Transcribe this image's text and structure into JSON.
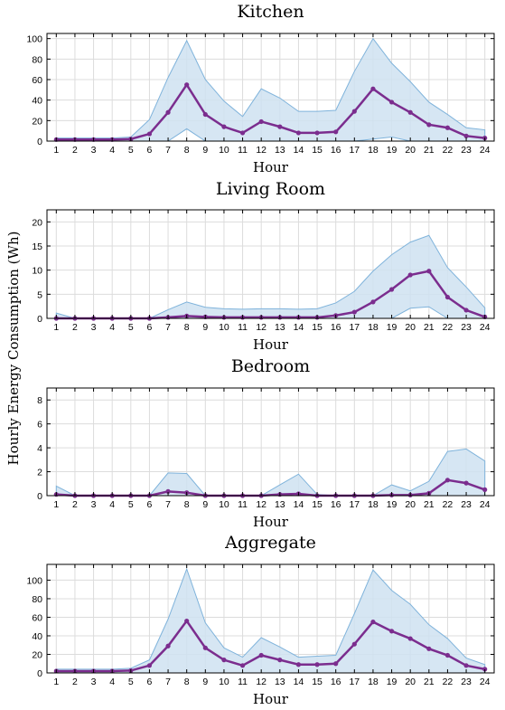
{
  "figure": {
    "ylabel": "Hourly Energy Consumption (Wh)",
    "colors": {
      "band_fill": "#cfe2f1",
      "band_edge": "#7fb3db",
      "mean_line": "#7b2d8e"
    }
  },
  "chart_data": [
    {
      "type": "area",
      "title": "Kitchen",
      "xlabel": "Hour",
      "x": [
        1,
        2,
        3,
        4,
        5,
        6,
        7,
        8,
        9,
        10,
        11,
        12,
        13,
        14,
        15,
        16,
        17,
        18,
        19,
        20,
        21,
        22,
        23,
        24
      ],
      "xlim": [
        0.5,
        24.5
      ],
      "ylim": [
        0,
        105
      ],
      "yticks": [
        0,
        20,
        40,
        60,
        80,
        100
      ],
      "grid": true,
      "series": [
        {
          "role": "upper",
          "values": [
            3,
            3,
            3,
            3,
            4,
            21,
            62,
            98,
            60,
            39,
            24,
            51,
            42,
            29,
            29,
            30,
            68,
            100,
            76,
            58,
            38,
            26,
            13,
            11
          ]
        },
        {
          "role": "lower",
          "values": [
            0,
            0,
            0,
            0,
            0,
            0,
            0,
            12,
            0,
            0,
            0,
            0,
            0,
            0,
            0,
            0,
            0,
            2,
            4,
            0,
            0,
            0,
            0,
            0
          ]
        },
        {
          "role": "mean",
          "values": [
            1.5,
            1.5,
            1.5,
            1.5,
            2,
            7,
            28,
            55,
            26,
            14,
            8,
            19,
            14,
            8,
            8,
            9,
            29,
            51,
            38,
            28,
            16,
            13,
            5,
            3
          ]
        }
      ]
    },
    {
      "type": "area",
      "title": "Living Room",
      "xlabel": "Hour",
      "x": [
        1,
        2,
        3,
        4,
        5,
        6,
        7,
        8,
        9,
        10,
        11,
        12,
        13,
        14,
        15,
        16,
        17,
        18,
        19,
        20,
        21,
        22,
        23,
        24
      ],
      "xlim": [
        0.5,
        24.5
      ],
      "ylim": [
        0,
        22.5
      ],
      "yticks": [
        0,
        5,
        10,
        15,
        20
      ],
      "grid": true,
      "series": [
        {
          "role": "upper",
          "values": [
            1.1,
            0,
            0,
            0,
            0,
            0,
            1.8,
            3.4,
            2.3,
            2.0,
            1.9,
            2.0,
            2.0,
            1.9,
            2.0,
            3.2,
            5.6,
            9.8,
            13.2,
            15.8,
            17.2,
            10.5,
            6.5,
            2.2
          ]
        },
        {
          "role": "lower",
          "values": [
            0,
            0,
            0,
            0,
            0,
            0,
            0,
            0,
            0,
            0,
            0,
            0,
            0,
            0,
            0,
            0,
            0,
            0,
            0,
            2.1,
            2.4,
            0,
            0,
            0
          ]
        },
        {
          "role": "mean",
          "values": [
            0,
            0,
            0,
            0,
            0,
            0,
            0.2,
            0.5,
            0.3,
            0.2,
            0.2,
            0.2,
            0.2,
            0.2,
            0.2,
            0.6,
            1.3,
            3.4,
            6.0,
            9.0,
            9.8,
            4.4,
            1.7,
            0.3
          ]
        }
      ]
    },
    {
      "type": "area",
      "title": "Bedroom",
      "xlabel": "Hour",
      "x": [
        1,
        2,
        3,
        4,
        5,
        6,
        7,
        8,
        9,
        10,
        11,
        12,
        13,
        14,
        15,
        16,
        17,
        18,
        19,
        20,
        21,
        22,
        23,
        24
      ],
      "xlim": [
        0.5,
        24.5
      ],
      "ylim": [
        0,
        9
      ],
      "yticks": [
        0,
        2,
        4,
        6,
        8
      ],
      "grid": true,
      "series": [
        {
          "role": "upper",
          "values": [
            0.8,
            0,
            0,
            0,
            0,
            0,
            1.9,
            1.85,
            0,
            0,
            0,
            0,
            0.9,
            1.8,
            0.1,
            0,
            0,
            0,
            0.9,
            0.4,
            1.2,
            3.7,
            3.9,
            2.9
          ]
        },
        {
          "role": "lower",
          "values": [
            0,
            0,
            0,
            0,
            0,
            0,
            0,
            0,
            0,
            0,
            0,
            0,
            0,
            0,
            0,
            0,
            0,
            0,
            0,
            0,
            0,
            0,
            0,
            0
          ]
        },
        {
          "role": "mean",
          "values": [
            0.1,
            0,
            0,
            0,
            0,
            0,
            0.35,
            0.25,
            0,
            0,
            0,
            0,
            0.1,
            0.15,
            0,
            0,
            0,
            0,
            0.05,
            0.05,
            0.2,
            1.3,
            1.05,
            0.5
          ]
        }
      ]
    },
    {
      "type": "area",
      "title": "Aggregate",
      "xlabel": "Hour",
      "x": [
        1,
        2,
        3,
        4,
        5,
        6,
        7,
        8,
        9,
        10,
        11,
        12,
        13,
        14,
        15,
        16,
        17,
        18,
        19,
        20,
        21,
        22,
        23,
        24
      ],
      "xlim": [
        0.5,
        24.5
      ],
      "ylim": [
        0,
        117
      ],
      "yticks": [
        0,
        20,
        40,
        60,
        80,
        100
      ],
      "grid": true,
      "series": [
        {
          "role": "upper",
          "values": [
            4,
            4,
            4,
            4,
            5,
            14,
            58,
            112,
            54,
            27,
            17,
            38,
            28,
            17,
            18,
            19,
            64,
            111,
            89,
            74,
            52,
            37,
            16,
            9
          ]
        },
        {
          "role": "lower",
          "values": [
            0,
            0,
            0,
            0,
            0,
            0,
            0,
            0,
            0,
            0,
            0,
            0,
            0,
            0,
            0,
            0,
            0,
            0,
            0,
            0,
            0,
            0,
            0,
            0
          ]
        },
        {
          "role": "mean",
          "values": [
            2,
            2,
            2,
            2,
            2.5,
            8,
            29,
            56,
            27,
            14,
            8,
            19,
            14,
            9,
            9,
            10,
            31,
            55,
            45,
            37,
            26,
            19,
            8,
            4
          ]
        }
      ]
    }
  ]
}
